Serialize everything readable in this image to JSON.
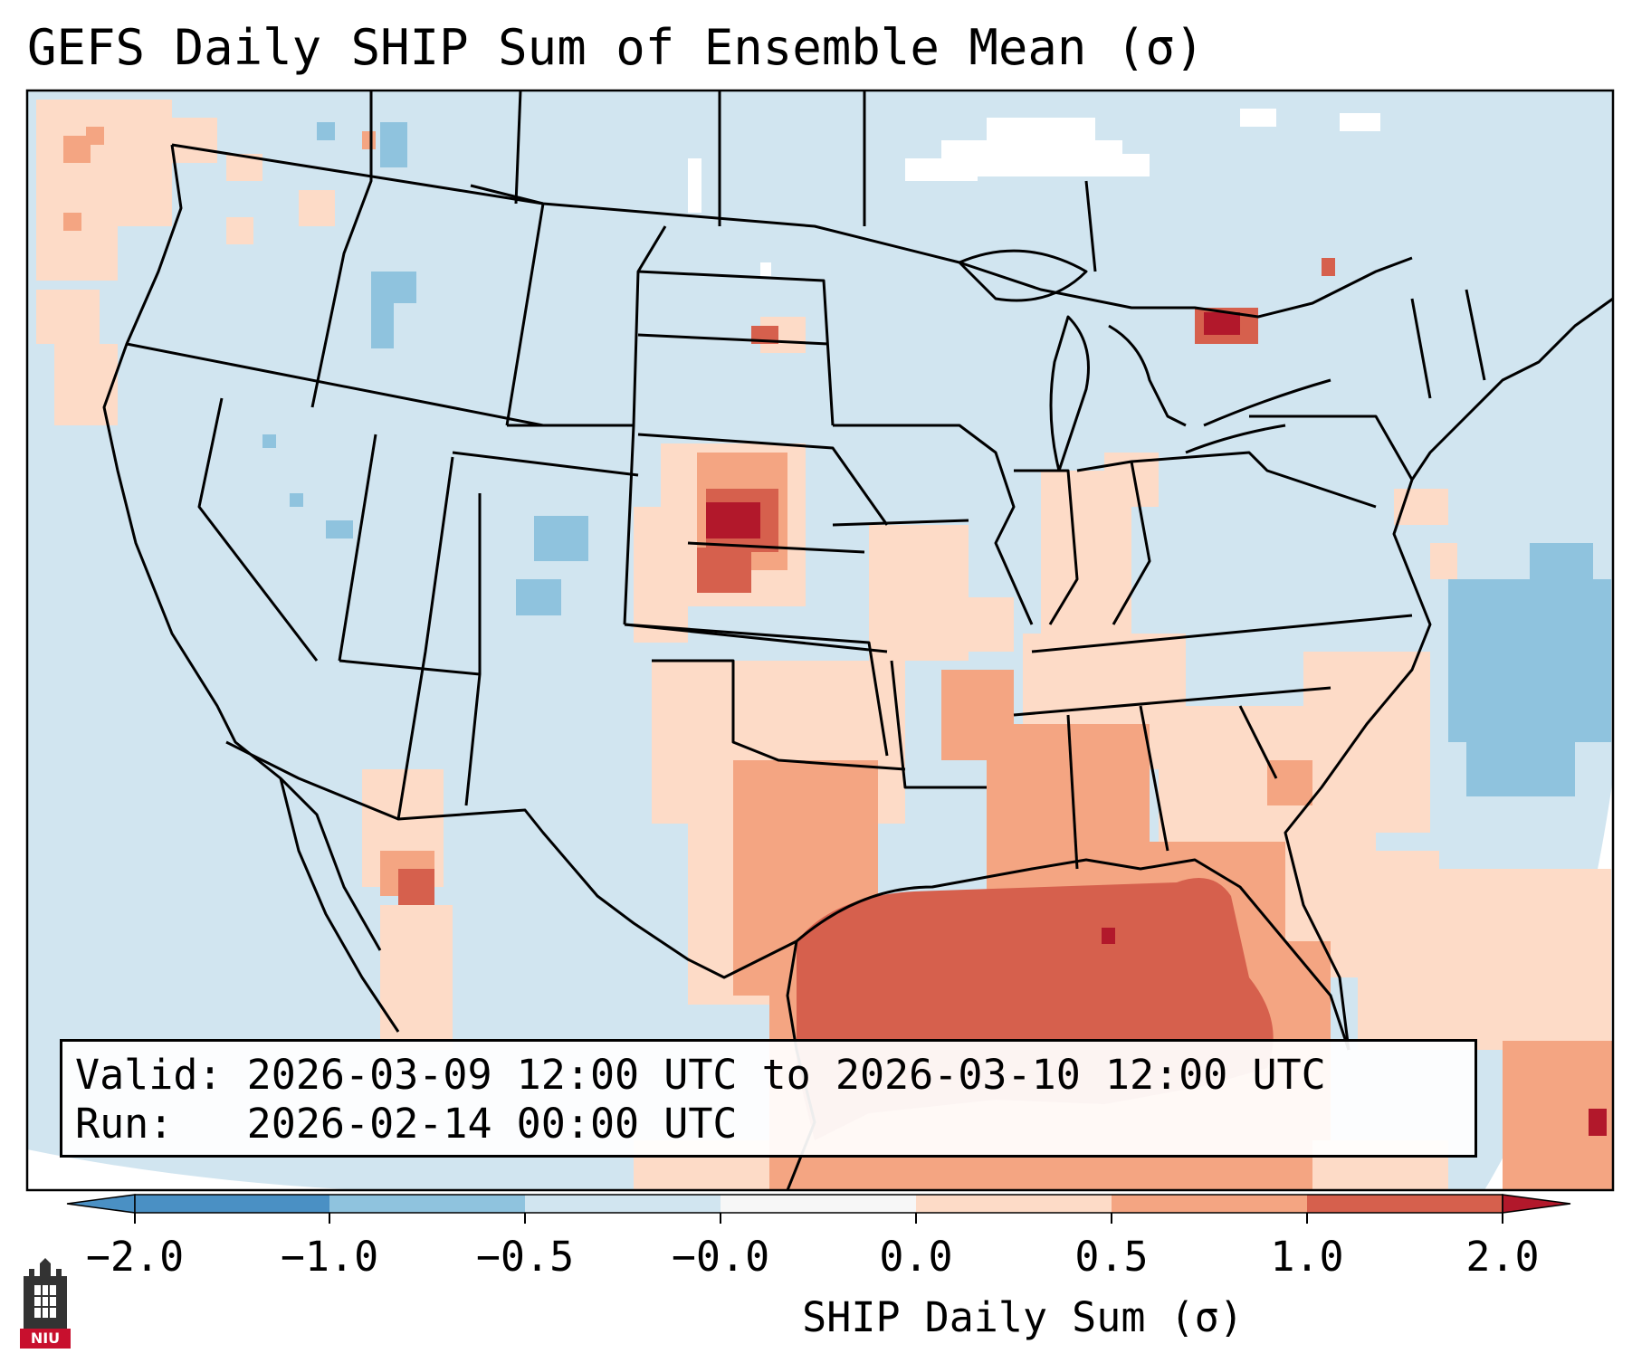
{
  "title": "GEFS Daily SHIP Sum of Ensemble Mean (σ)",
  "info": {
    "valid_label": "Valid:",
    "valid_value": "2026-03-09 12:00 UTC to 2026-03-10 12:00 UTC",
    "run_label": "Run:",
    "run_value": "2026-02-14 00:00 UTC"
  },
  "colorbar": {
    "label": "SHIP Daily Sum (σ)",
    "ticks": [
      "−2.0",
      "−1.0",
      "−0.5",
      "−0.0",
      "0.0",
      "0.5",
      "1.0",
      "2.0"
    ],
    "bin_colors": [
      "#4a90c4",
      "#8fc3de",
      "#d1e5f0",
      "#f7f7f7",
      "#fddbc7",
      "#f4a582",
      "#d6604d",
      "#b2182b"
    ],
    "extend": "both"
  },
  "colors": {
    "background_field": "#d1e5f0",
    "ocean_outside": "#ffffff",
    "boundaries": "#000000"
  },
  "logo": {
    "text": "NIU",
    "icon": "niu-castle-logo-icon"
  }
}
